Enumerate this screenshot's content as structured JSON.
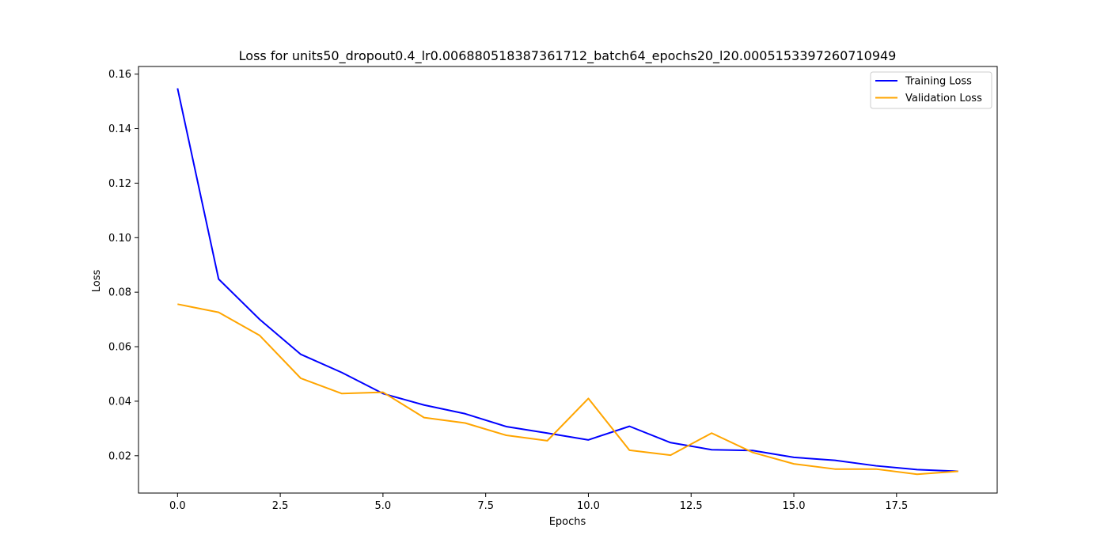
{
  "chart_data": {
    "type": "line",
    "title": "Loss for units50_dropout0.4_lr0.006880518387361712_batch64_epochs20_l20.0005153397260710949",
    "xlabel": "Epochs",
    "ylabel": "Loss",
    "xlim": [
      -0.95,
      19.95
    ],
    "ylim": [
      0.0063,
      0.1628
    ],
    "x_ticks": [
      0.0,
      2.5,
      5.0,
      7.5,
      10.0,
      12.5,
      15.0,
      17.5
    ],
    "x_tick_labels": [
      "0.0",
      "2.5",
      "5.0",
      "7.5",
      "10.0",
      "12.5",
      "15.0",
      "17.5"
    ],
    "y_ticks": [
      0.02,
      0.04,
      0.06,
      0.08,
      0.1,
      0.12,
      0.14,
      0.16
    ],
    "y_tick_labels": [
      "0.02",
      "0.04",
      "0.06",
      "0.08",
      "0.10",
      "0.12",
      "0.14",
      "0.16"
    ],
    "grid": false,
    "legend_position": "top-right",
    "x": [
      0,
      1,
      2,
      3,
      4,
      5,
      6,
      7,
      8,
      9,
      10,
      11,
      12,
      13,
      14,
      15,
      16,
      17,
      18,
      19
    ],
    "series": [
      {
        "name": "Training Loss",
        "color": "#0000ff",
        "values": [
          0.1548,
          0.0848,
          0.07,
          0.0572,
          0.0505,
          0.0428,
          0.0386,
          0.0354,
          0.0307,
          0.0283,
          0.0258,
          0.0308,
          0.0248,
          0.0222,
          0.0219,
          0.0194,
          0.0183,
          0.0163,
          0.0149,
          0.0143
        ]
      },
      {
        "name": "Validation Loss",
        "color": "#ffa500",
        "values": [
          0.0756,
          0.0726,
          0.0641,
          0.0484,
          0.0428,
          0.0433,
          0.034,
          0.032,
          0.0275,
          0.0255,
          0.041,
          0.022,
          0.0202,
          0.0283,
          0.0212,
          0.017,
          0.0151,
          0.0151,
          0.0132,
          0.0143
        ]
      }
    ]
  }
}
